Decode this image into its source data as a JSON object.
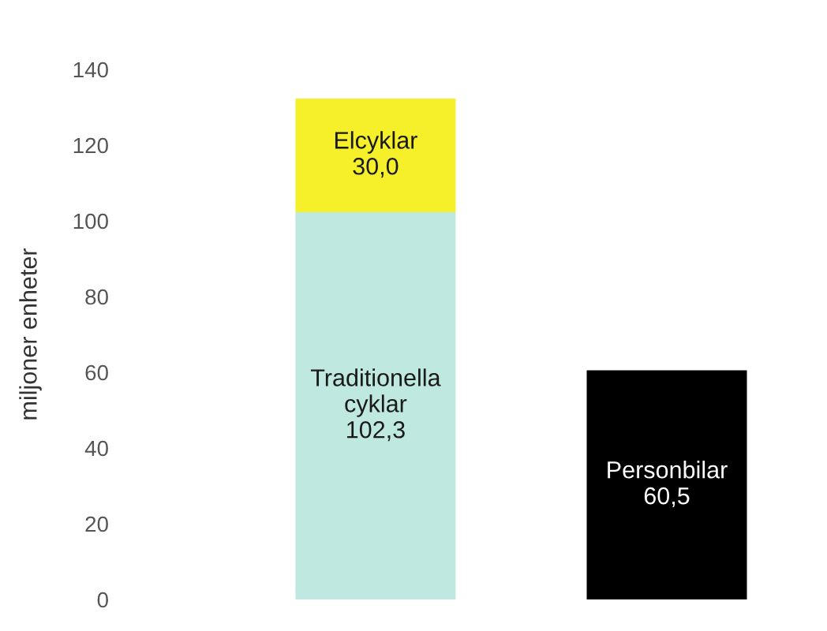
{
  "chart_data": {
    "type": "bar",
    "stacked": true,
    "ylabel": "miljoner enheter",
    "categories": [
      null,
      null
    ],
    "series": [
      {
        "name": "Traditionella cyklar",
        "color": "#bfe8e0",
        "values": [
          102.3,
          null
        ],
        "value_labels": [
          "102,3",
          null
        ]
      },
      {
        "name": "Elcyklar",
        "color": "#f5f02a",
        "values": [
          30.0,
          null
        ],
        "value_labels": [
          "30,0",
          null
        ]
      },
      {
        "name": "Personbilar",
        "color": "#000000",
        "values": [
          null,
          60.5
        ],
        "value_labels": [
          null,
          "60,5"
        ]
      }
    ],
    "ylim": [
      0,
      140
    ],
    "yticks": [
      0,
      20,
      40,
      60,
      80,
      100,
      120,
      140
    ],
    "grid": false,
    "legend": false
  }
}
